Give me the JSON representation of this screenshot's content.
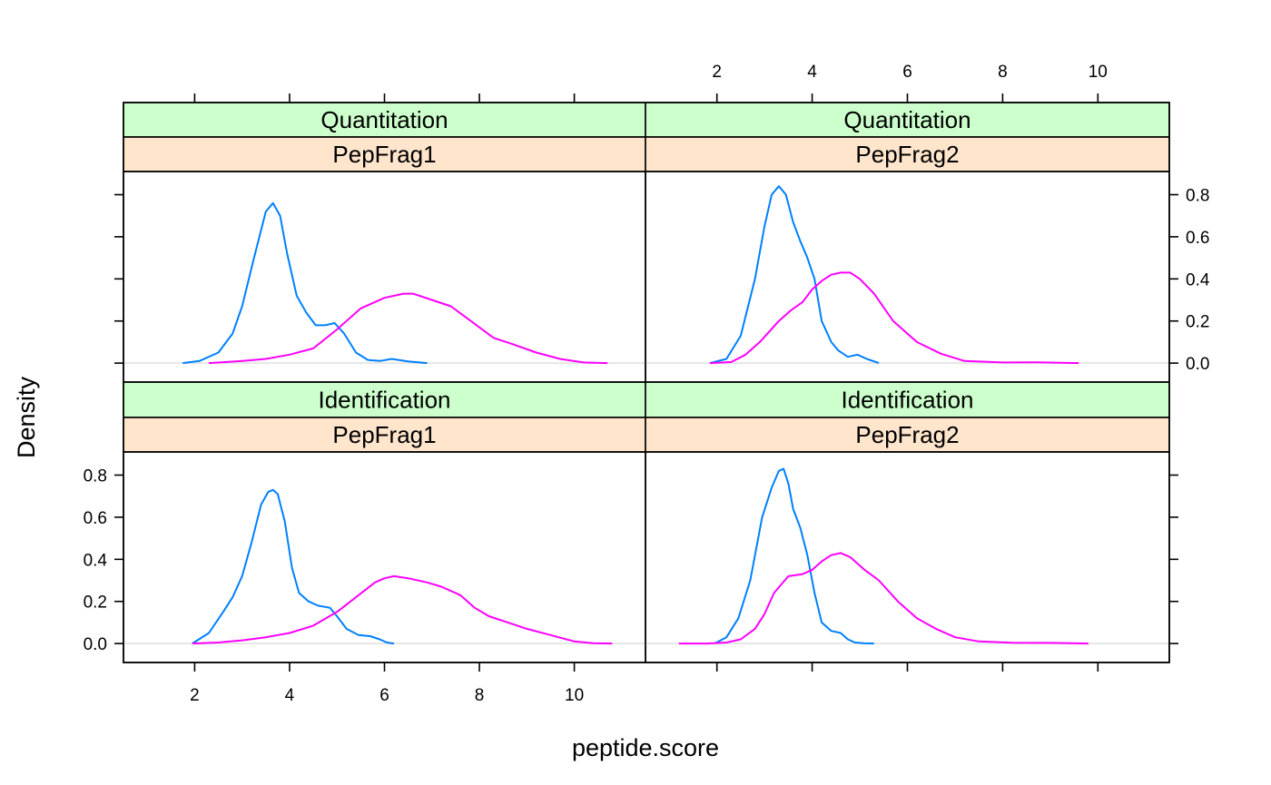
{
  "chart_data": {
    "type": "line",
    "chart_kind": "lattice densityplot",
    "xlabel": "peptide.score",
    "ylabel": "Density",
    "xticks": [
      2,
      4,
      6,
      8,
      10
    ],
    "yticks": [
      0.0,
      0.2,
      0.4,
      0.6,
      0.8
    ],
    "ytick_labels": [
      "0.0",
      "0.2",
      "0.4",
      "0.6",
      "0.8"
    ],
    "xlim": [
      0.5,
      11.5
    ],
    "ylim": [
      -0.09,
      0.91
    ],
    "colors": {
      "series1": "#0080ff",
      "series2": "#ff00ff",
      "strip_outer": "#ccffcc",
      "strip_inner": "#ffe5cc",
      "baseline": "#e6e6e6"
    },
    "panels": [
      {
        "id": "identification-pepfrag1",
        "strip_outer": "Identification",
        "strip_inner": "PepFrag1",
        "series": [
          {
            "color": "#0080ff",
            "x": [
              1.95,
              2.3,
              2.6,
              2.8,
              3.0,
              3.2,
              3.4,
              3.55,
              3.65,
              3.75,
              3.9,
              4.05,
              4.2,
              4.4,
              4.6,
              4.85,
              5.0,
              5.2,
              5.45,
              5.7,
              5.9,
              6.05,
              6.2
            ],
            "y": [
              0.0,
              0.05,
              0.15,
              0.22,
              0.32,
              0.48,
              0.66,
              0.72,
              0.73,
              0.71,
              0.58,
              0.36,
              0.24,
              0.2,
              0.18,
              0.17,
              0.13,
              0.07,
              0.04,
              0.035,
              0.02,
              0.005,
              0.0
            ]
          },
          {
            "color": "#ff00ff",
            "x": [
              1.95,
              2.5,
              3.0,
              3.5,
              4.0,
              4.5,
              5.0,
              5.4,
              5.8,
              6.0,
              6.2,
              6.5,
              6.9,
              7.2,
              7.6,
              7.9,
              8.2,
              8.6,
              9.0,
              9.5,
              10.0,
              10.4,
              10.8
            ],
            "y": [
              0.0,
              0.005,
              0.015,
              0.03,
              0.05,
              0.085,
              0.15,
              0.22,
              0.29,
              0.31,
              0.32,
              0.31,
              0.29,
              0.27,
              0.23,
              0.17,
              0.13,
              0.1,
              0.07,
              0.04,
              0.01,
              0.002,
              0.0
            ]
          }
        ]
      },
      {
        "id": "identification-pepfrag2",
        "strip_outer": "Identification",
        "strip_inner": "PepFrag2",
        "series": [
          {
            "color": "#0080ff",
            "x": [
              1.95,
              2.2,
              2.45,
              2.7,
              2.95,
              3.15,
              3.3,
              3.4,
              3.5,
              3.6,
              3.75,
              3.9,
              4.05,
              4.2,
              4.4,
              4.6,
              4.75,
              4.9,
              5.1,
              5.3
            ],
            "y": [
              0.0,
              0.03,
              0.12,
              0.3,
              0.6,
              0.74,
              0.82,
              0.83,
              0.76,
              0.64,
              0.55,
              0.42,
              0.24,
              0.1,
              0.06,
              0.05,
              0.02,
              0.005,
              0.001,
              0.0
            ]
          },
          {
            "color": "#ff00ff",
            "x": [
              1.2,
              1.8,
              2.2,
              2.5,
              2.8,
              3.0,
              3.2,
              3.5,
              3.8,
              4.0,
              4.2,
              4.4,
              4.6,
              4.8,
              5.1,
              5.4,
              5.8,
              6.2,
              6.6,
              7.0,
              7.5,
              8.2,
              9.0,
              9.8
            ],
            "y": [
              0.0,
              0.0,
              0.005,
              0.02,
              0.07,
              0.14,
              0.24,
              0.32,
              0.33,
              0.35,
              0.39,
              0.42,
              0.43,
              0.41,
              0.35,
              0.3,
              0.2,
              0.12,
              0.07,
              0.03,
              0.01,
              0.004,
              0.003,
              0.0
            ]
          }
        ]
      },
      {
        "id": "quantitation-pepfrag1",
        "strip_outer": "Quantitation",
        "strip_inner": "PepFrag1",
        "series": [
          {
            "color": "#0080ff",
            "x": [
              1.75,
              2.1,
              2.5,
              2.8,
              3.0,
              3.25,
              3.5,
              3.65,
              3.8,
              3.95,
              4.15,
              4.35,
              4.55,
              4.75,
              4.95,
              5.15,
              5.4,
              5.65,
              5.9,
              6.15,
              6.5,
              6.9
            ],
            "y": [
              0.0,
              0.01,
              0.05,
              0.14,
              0.27,
              0.5,
              0.72,
              0.76,
              0.7,
              0.52,
              0.32,
              0.24,
              0.18,
              0.18,
              0.19,
              0.14,
              0.05,
              0.015,
              0.01,
              0.02,
              0.008,
              0.0
            ]
          },
          {
            "color": "#ff00ff",
            "x": [
              2.3,
              3.0,
              3.5,
              4.0,
              4.5,
              5.0,
              5.5,
              6.0,
              6.4,
              6.6,
              7.0,
              7.4,
              7.7,
              8.0,
              8.3,
              8.7,
              9.2,
              9.7,
              10.2,
              10.7
            ],
            "y": [
              0.0,
              0.01,
              0.02,
              0.04,
              0.07,
              0.16,
              0.26,
              0.31,
              0.33,
              0.33,
              0.3,
              0.27,
              0.22,
              0.17,
              0.12,
              0.09,
              0.05,
              0.02,
              0.003,
              0.0
            ]
          }
        ]
      },
      {
        "id": "quantitation-pepfrag2",
        "strip_outer": "Quantitation",
        "strip_inner": "PepFrag2",
        "series": [
          {
            "color": "#0080ff",
            "x": [
              1.85,
              2.2,
              2.5,
              2.8,
              3.0,
              3.15,
              3.3,
              3.45,
              3.6,
              3.75,
              3.9,
              4.05,
              4.2,
              4.4,
              4.55,
              4.75,
              4.95,
              5.15,
              5.4
            ],
            "y": [
              0.0,
              0.02,
              0.13,
              0.4,
              0.65,
              0.8,
              0.84,
              0.8,
              0.67,
              0.58,
              0.5,
              0.4,
              0.2,
              0.1,
              0.06,
              0.03,
              0.04,
              0.02,
              0.0
            ]
          },
          {
            "color": "#ff00ff",
            "x": [
              1.85,
              2.3,
              2.6,
              2.9,
              3.1,
              3.3,
              3.55,
              3.8,
              4.0,
              4.2,
              4.4,
              4.6,
              4.8,
              5.0,
              5.3,
              5.7,
              6.2,
              6.7,
              7.2,
              8.0,
              8.7,
              9.6
            ],
            "y": [
              0.0,
              0.005,
              0.04,
              0.1,
              0.15,
              0.2,
              0.25,
              0.29,
              0.35,
              0.39,
              0.42,
              0.43,
              0.43,
              0.4,
              0.33,
              0.2,
              0.1,
              0.045,
              0.01,
              0.003,
              0.004,
              0.0
            ]
          }
        ]
      }
    ]
  }
}
